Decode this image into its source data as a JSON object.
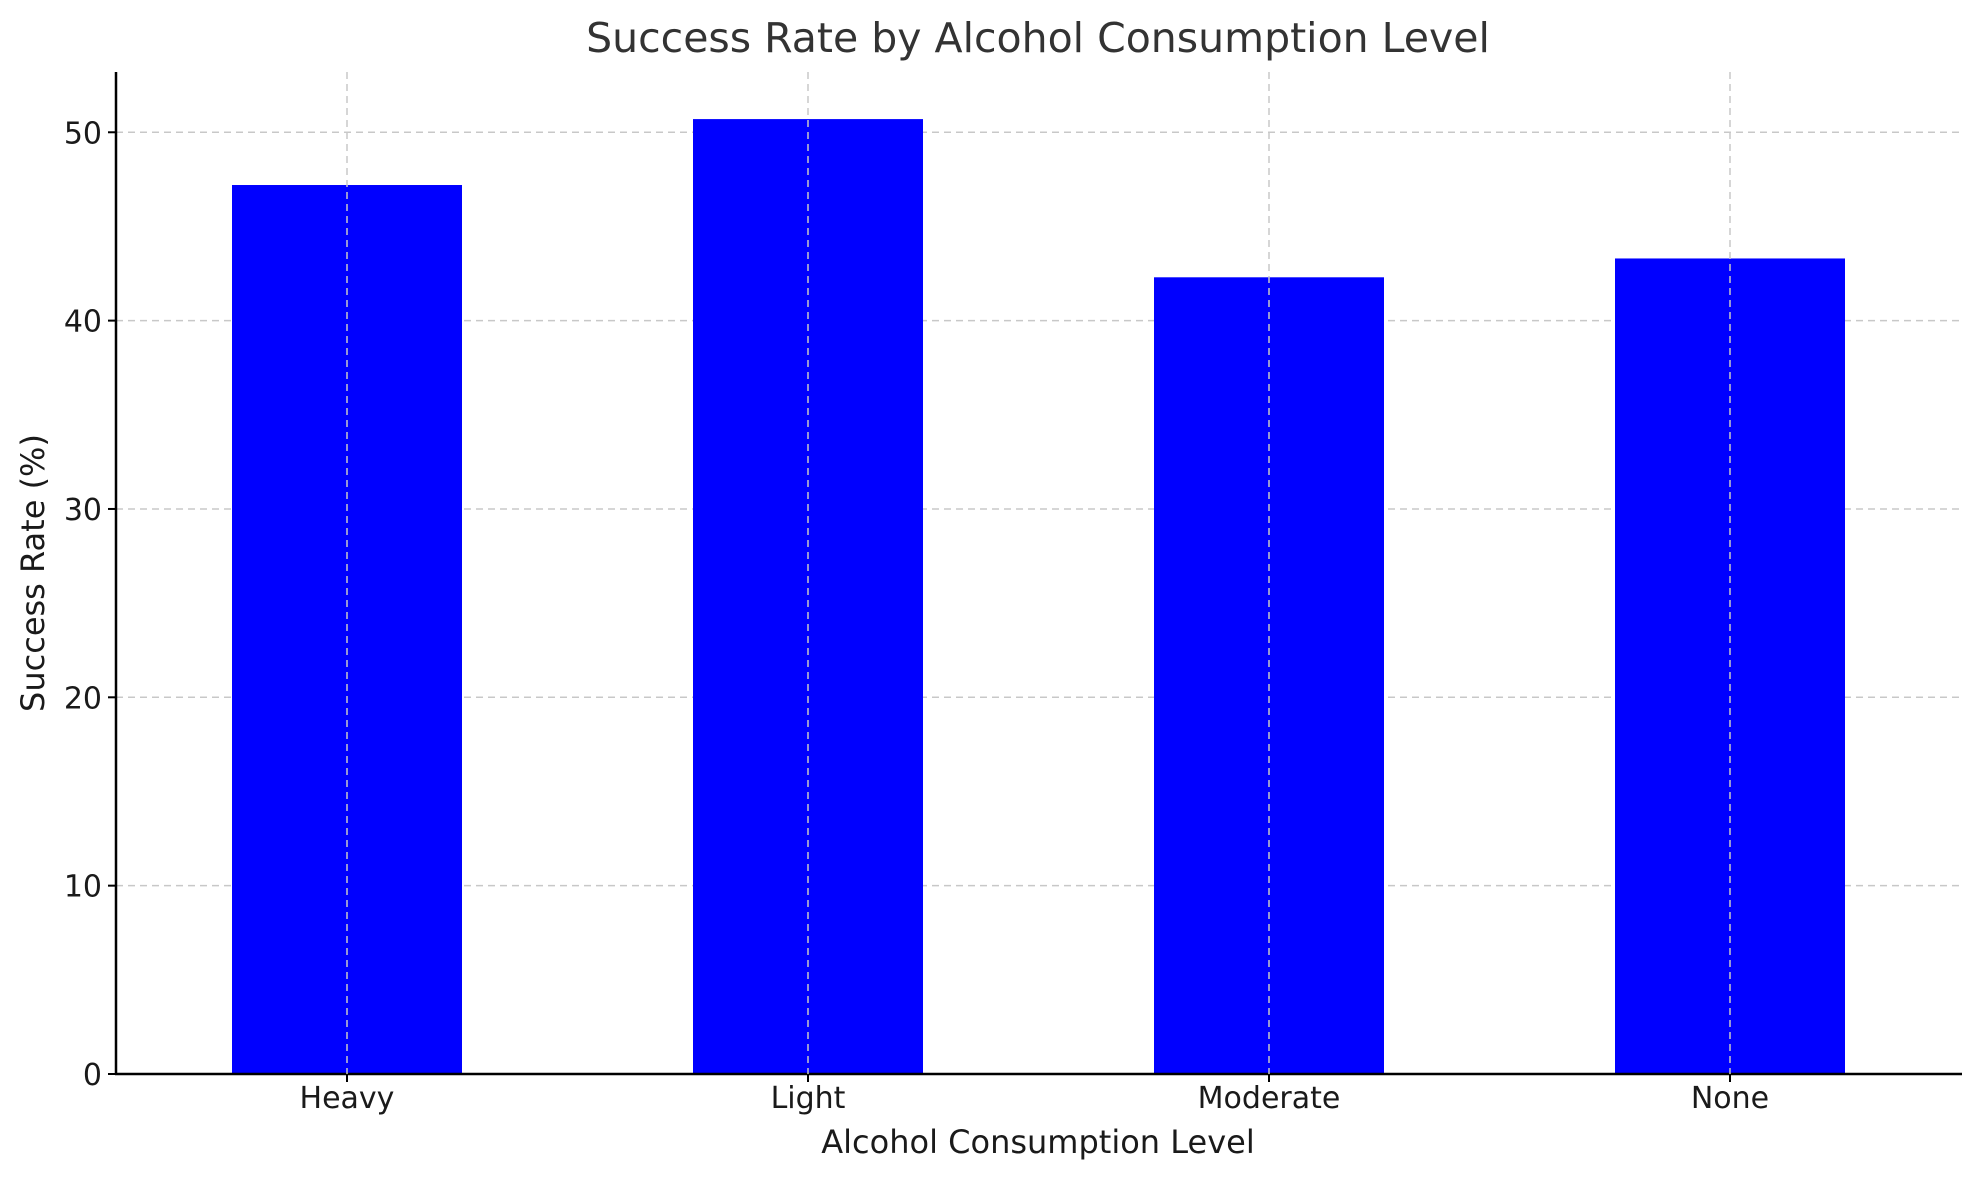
{
  "chart_data": {
    "type": "bar",
    "title": "Success Rate by Alcohol Consumption Level",
    "xlabel": "Alcohol Consumption Level",
    "ylabel": "Success Rate (%)",
    "categories": [
      "Heavy",
      "Light",
      "Moderate",
      "None"
    ],
    "values": [
      47.2,
      50.7,
      42.3,
      43.3
    ],
    "ylim": [
      0,
      53.2
    ],
    "yticks": [
      0,
      10,
      20,
      30,
      40,
      50
    ],
    "grid": true,
    "bar_color": "#0000ff"
  }
}
